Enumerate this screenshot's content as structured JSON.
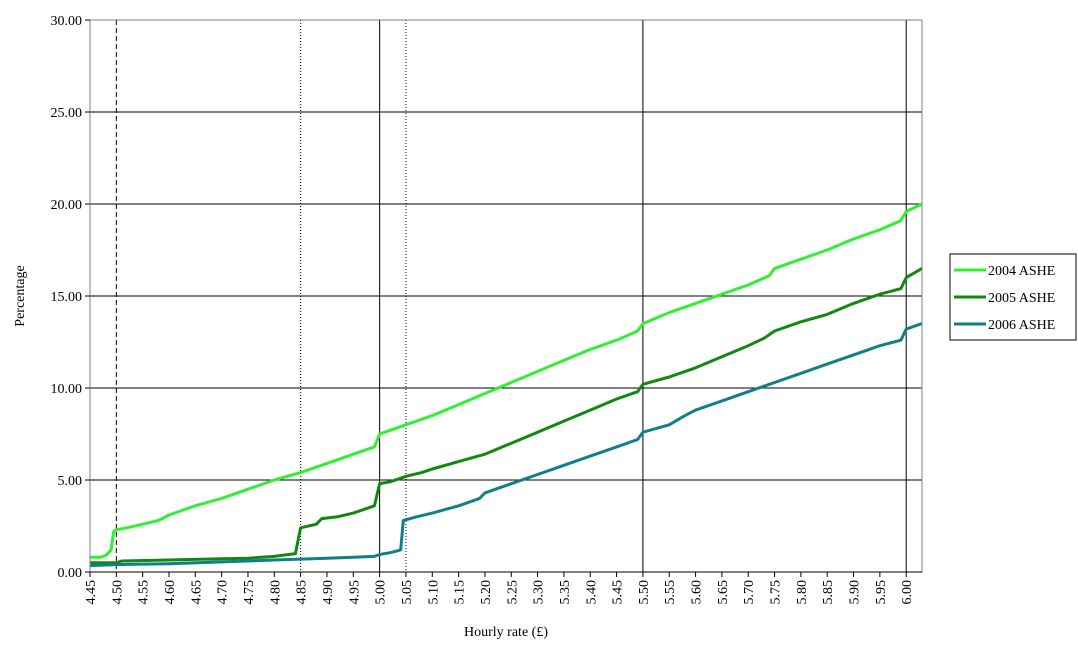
{
  "chart_data": {
    "type": "line",
    "xlabel": "Hourly rate (£)",
    "ylabel": "Percentage",
    "xlim": [
      4.45,
      6.03
    ],
    "ylim": [
      0,
      30
    ],
    "y_ticks": [
      "0.00",
      "5.00",
      "10.00",
      "15.00",
      "20.00",
      "25.00",
      "30.00"
    ],
    "x_ticks": [
      "4.45",
      "4.50",
      "4.55",
      "4.60",
      "4.65",
      "4.70",
      "4.75",
      "4.80",
      "4.85",
      "4.90",
      "4.95",
      "5.00",
      "5.05",
      "5.10",
      "5.15",
      "5.20",
      "5.25",
      "5.30",
      "5.35",
      "5.40",
      "5.45",
      "5.50",
      "5.55",
      "5.60",
      "5.65",
      "5.70",
      "5.75",
      "5.80",
      "5.85",
      "5.90",
      "5.95",
      "6.00"
    ],
    "grid": "horizontal",
    "legend_position": "right",
    "reference_lines": [
      {
        "x": 4.5,
        "style": "dashed"
      },
      {
        "x": 4.85,
        "style": "dotted"
      },
      {
        "x": 5.0,
        "style": "solid"
      },
      {
        "x": 5.05,
        "style": "dotted"
      },
      {
        "x": 5.5,
        "style": "solid"
      },
      {
        "x": 6.0,
        "style": "solid"
      }
    ],
    "series": [
      {
        "name": "2004 ASHE",
        "color": "#33ee33",
        "points": [
          [
            4.45,
            0.8
          ],
          [
            4.47,
            0.8
          ],
          [
            4.48,
            0.9
          ],
          [
            4.49,
            1.2
          ],
          [
            4.495,
            2.2
          ],
          [
            4.5,
            2.3
          ],
          [
            4.52,
            2.4
          ],
          [
            4.55,
            2.6
          ],
          [
            4.58,
            2.8
          ],
          [
            4.6,
            3.1
          ],
          [
            4.65,
            3.6
          ],
          [
            4.7,
            4.0
          ],
          [
            4.75,
            4.5
          ],
          [
            4.8,
            5.0
          ],
          [
            4.85,
            5.4
          ],
          [
            4.9,
            5.9
          ],
          [
            4.95,
            6.4
          ],
          [
            4.99,
            6.8
          ],
          [
            5.0,
            7.5
          ],
          [
            5.05,
            8.0
          ],
          [
            5.1,
            8.5
          ],
          [
            5.15,
            9.1
          ],
          [
            5.2,
            9.7
          ],
          [
            5.25,
            10.3
          ],
          [
            5.3,
            10.9
          ],
          [
            5.35,
            11.5
          ],
          [
            5.4,
            12.1
          ],
          [
            5.45,
            12.6
          ],
          [
            5.49,
            13.1
          ],
          [
            5.5,
            13.5
          ],
          [
            5.55,
            14.1
          ],
          [
            5.6,
            14.6
          ],
          [
            5.65,
            15.1
          ],
          [
            5.7,
            15.6
          ],
          [
            5.74,
            16.1
          ],
          [
            5.75,
            16.5
          ],
          [
            5.8,
            17.0
          ],
          [
            5.85,
            17.5
          ],
          [
            5.9,
            18.1
          ],
          [
            5.95,
            18.6
          ],
          [
            5.99,
            19.1
          ],
          [
            6.0,
            19.6
          ],
          [
            6.03,
            20.0
          ]
        ]
      },
      {
        "name": "2005 ASHE",
        "color": "#118811",
        "points": [
          [
            4.45,
            0.5
          ],
          [
            4.5,
            0.5
          ],
          [
            4.51,
            0.6
          ],
          [
            4.6,
            0.65
          ],
          [
            4.7,
            0.72
          ],
          [
            4.75,
            0.75
          ],
          [
            4.8,
            0.85
          ],
          [
            4.84,
            1.0
          ],
          [
            4.85,
            2.4
          ],
          [
            4.88,
            2.6
          ],
          [
            4.89,
            2.9
          ],
          [
            4.92,
            3.0
          ],
          [
            4.95,
            3.2
          ],
          [
            4.99,
            3.6
          ],
          [
            5.0,
            4.8
          ],
          [
            5.02,
            4.9
          ],
          [
            5.04,
            5.1
          ],
          [
            5.05,
            5.2
          ],
          [
            5.08,
            5.4
          ],
          [
            5.1,
            5.6
          ],
          [
            5.15,
            6.0
          ],
          [
            5.2,
            6.4
          ],
          [
            5.25,
            7.0
          ],
          [
            5.3,
            7.6
          ],
          [
            5.35,
            8.2
          ],
          [
            5.4,
            8.8
          ],
          [
            5.45,
            9.4
          ],
          [
            5.49,
            9.8
          ],
          [
            5.5,
            10.2
          ],
          [
            5.55,
            10.6
          ],
          [
            5.6,
            11.1
          ],
          [
            5.65,
            11.7
          ],
          [
            5.7,
            12.3
          ],
          [
            5.73,
            12.7
          ],
          [
            5.75,
            13.1
          ],
          [
            5.8,
            13.6
          ],
          [
            5.85,
            14.0
          ],
          [
            5.9,
            14.6
          ],
          [
            5.95,
            15.1
          ],
          [
            5.99,
            15.4
          ],
          [
            6.0,
            16.0
          ],
          [
            6.03,
            16.5
          ]
        ]
      },
      {
        "name": "2006 ASHE",
        "color": "#117f88",
        "points": [
          [
            4.45,
            0.35
          ],
          [
            4.5,
            0.4
          ],
          [
            4.6,
            0.45
          ],
          [
            4.7,
            0.55
          ],
          [
            4.8,
            0.65
          ],
          [
            4.9,
            0.75
          ],
          [
            4.95,
            0.8
          ],
          [
            4.99,
            0.85
          ],
          [
            5.0,
            0.95
          ],
          [
            5.02,
            1.05
          ],
          [
            5.04,
            1.2
          ],
          [
            5.045,
            2.8
          ],
          [
            5.07,
            3.0
          ],
          [
            5.1,
            3.2
          ],
          [
            5.15,
            3.6
          ],
          [
            5.19,
            4.0
          ],
          [
            5.2,
            4.3
          ],
          [
            5.25,
            4.8
          ],
          [
            5.3,
            5.3
          ],
          [
            5.35,
            5.8
          ],
          [
            5.4,
            6.3
          ],
          [
            5.45,
            6.8
          ],
          [
            5.49,
            7.2
          ],
          [
            5.5,
            7.6
          ],
          [
            5.55,
            8.0
          ],
          [
            5.58,
            8.5
          ],
          [
            5.6,
            8.8
          ],
          [
            5.65,
            9.3
          ],
          [
            5.7,
            9.8
          ],
          [
            5.75,
            10.3
          ],
          [
            5.8,
            10.8
          ],
          [
            5.85,
            11.3
          ],
          [
            5.9,
            11.8
          ],
          [
            5.95,
            12.3
          ],
          [
            5.99,
            12.6
          ],
          [
            6.0,
            13.2
          ],
          [
            6.03,
            13.5
          ]
        ]
      }
    ]
  }
}
